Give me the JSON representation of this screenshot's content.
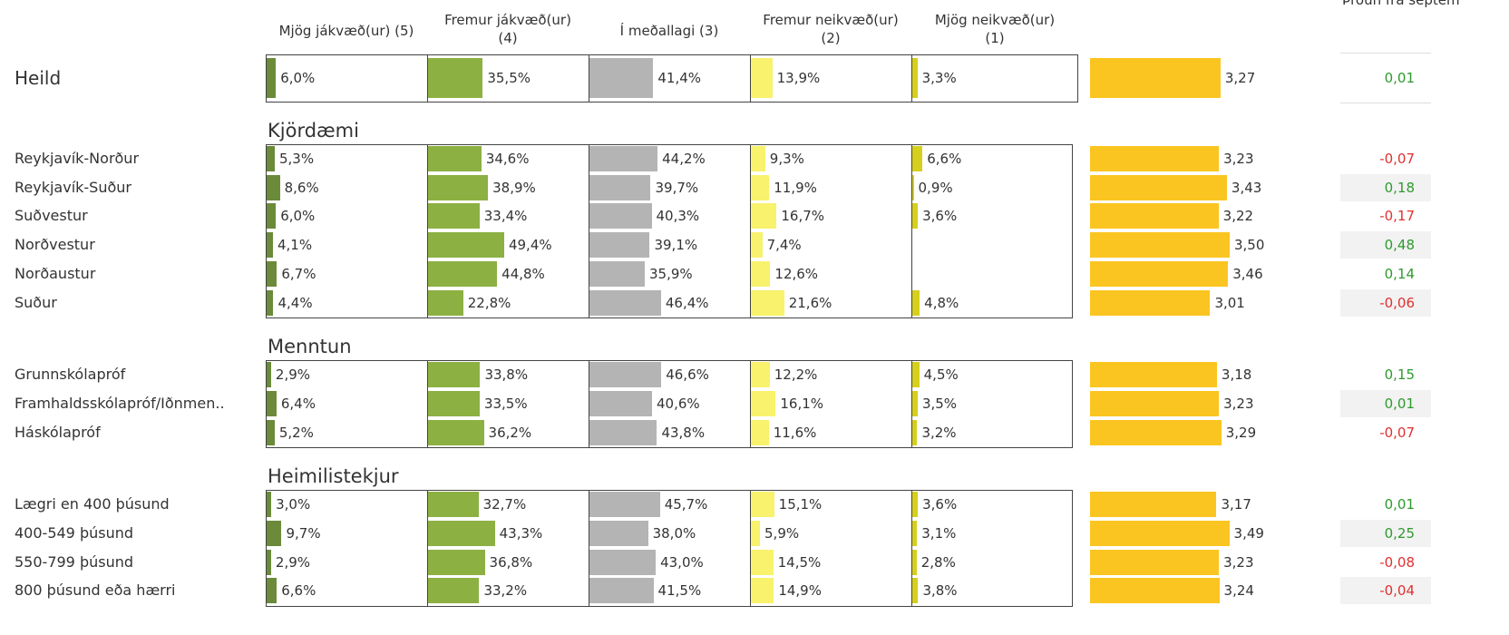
{
  "trend_header": "Þróun frá septem",
  "columns": [
    {
      "name": "Mjög jákvæð(ur) (5)",
      "color": "#6b8a3a"
    },
    {
      "name": "Fremur jákvæð(ur) (4)",
      "color": "#8db043"
    },
    {
      "name": "Í meðallagi (3)",
      "color": "#b4b4b4"
    },
    {
      "name": "Fremur neikvæð(ur) (2)",
      "color": "#f8f26c"
    },
    {
      "name": "Mjög neikvæð(ur) (1)",
      "color": "#d6cf1e"
    }
  ],
  "mean_color": "#fbc521",
  "positive_color": "#2e9a2e",
  "negative_color": "#e03030",
  "total": {
    "label": "Heild",
    "values": [
      6.0,
      35.5,
      41.4,
      13.9,
      3.3
    ],
    "value_labels": [
      "6,0%",
      "35,5%",
      "41,4%",
      "13,9%",
      "3,3%"
    ],
    "mean": 3.27,
    "mean_label": "3,27",
    "change": 0.01,
    "change_label": "0,01"
  },
  "groups": [
    {
      "title": "Kjördæmi",
      "rows": [
        {
          "label": "Reykjavík-Norður",
          "values": [
            5.3,
            34.6,
            44.2,
            9.3,
            6.6
          ],
          "value_labels": [
            "5,3%",
            "34,6%",
            "44,2%",
            "9,3%",
            "6,6%"
          ],
          "mean": 3.23,
          "mean_label": "3,23",
          "change": -0.07,
          "change_label": "-0,07"
        },
        {
          "label": "Reykjavík-Suður",
          "values": [
            8.6,
            38.9,
            39.7,
            11.9,
            0.9
          ],
          "value_labels": [
            "8,6%",
            "38,9%",
            "39,7%",
            "11,9%",
            "0,9%"
          ],
          "mean": 3.43,
          "mean_label": "3,43",
          "change": 0.18,
          "change_label": "0,18"
        },
        {
          "label": "Suðvestur",
          "values": [
            6.0,
            33.4,
            40.3,
            16.7,
            3.6
          ],
          "value_labels": [
            "6,0%",
            "33,4%",
            "40,3%",
            "16,7%",
            "3,6%"
          ],
          "mean": 3.22,
          "mean_label": "3,22",
          "change": -0.17,
          "change_label": "-0,17"
        },
        {
          "label": "Norðvestur",
          "values": [
            4.1,
            49.4,
            39.1,
            7.4,
            null
          ],
          "value_labels": [
            "4,1%",
            "49,4%",
            "39,1%",
            "7,4%",
            null
          ],
          "mean": 3.5,
          "mean_label": "3,50",
          "change": 0.48,
          "change_label": "0,48"
        },
        {
          "label": "Norðaustur",
          "values": [
            6.7,
            44.8,
            35.9,
            12.6,
            null
          ],
          "value_labels": [
            "6,7%",
            "44,8%",
            "35,9%",
            "12,6%",
            null
          ],
          "mean": 3.46,
          "mean_label": "3,46",
          "change": 0.14,
          "change_label": "0,14"
        },
        {
          "label": "Suður",
          "values": [
            4.4,
            22.8,
            46.4,
            21.6,
            4.8
          ],
          "value_labels": [
            "4,4%",
            "22,8%",
            "46,4%",
            "21,6%",
            "4,8%"
          ],
          "mean": 3.01,
          "mean_label": "3,01",
          "change": -0.06,
          "change_label": "-0,06"
        }
      ]
    },
    {
      "title": "Menntun",
      "rows": [
        {
          "label": "Grunnskólapróf",
          "values": [
            2.9,
            33.8,
            46.6,
            12.2,
            4.5
          ],
          "value_labels": [
            "2,9%",
            "33,8%",
            "46,6%",
            "12,2%",
            "4,5%"
          ],
          "mean": 3.18,
          "mean_label": "3,18",
          "change": 0.15,
          "change_label": "0,15"
        },
        {
          "label": "Framhaldsskólapróf/Iðnmen..",
          "values": [
            6.4,
            33.5,
            40.6,
            16.1,
            3.5
          ],
          "value_labels": [
            "6,4%",
            "33,5%",
            "40,6%",
            "16,1%",
            "3,5%"
          ],
          "mean": 3.23,
          "mean_label": "3,23",
          "change": 0.01,
          "change_label": "0,01"
        },
        {
          "label": "Háskólapróf",
          "values": [
            5.2,
            36.2,
            43.8,
            11.6,
            3.2
          ],
          "value_labels": [
            "5,2%",
            "36,2%",
            "43,8%",
            "11,6%",
            "3,2%"
          ],
          "mean": 3.29,
          "mean_label": "3,29",
          "change": -0.07,
          "change_label": "-0,07"
        }
      ]
    },
    {
      "title": "Heimilistekjur",
      "rows": [
        {
          "label": "Lægri en 400 þúsund",
          "values": [
            3.0,
            32.7,
            45.7,
            15.1,
            3.6
          ],
          "value_labels": [
            "3,0%",
            "32,7%",
            "45,7%",
            "15,1%",
            "3,6%"
          ],
          "mean": 3.17,
          "mean_label": "3,17",
          "change": 0.01,
          "change_label": "0,01"
        },
        {
          "label": "400-549 þúsund",
          "values": [
            9.7,
            43.3,
            38.0,
            5.9,
            3.1
          ],
          "value_labels": [
            "9,7%",
            "43,3%",
            "38,0%",
            "5,9%",
            "3,1%"
          ],
          "mean": 3.49,
          "mean_label": "3,49",
          "change": 0.25,
          "change_label": "0,25"
        },
        {
          "label": "550-799 þúsund",
          "values": [
            2.9,
            36.8,
            43.0,
            14.5,
            2.8
          ],
          "value_labels": [
            "2,9%",
            "36,8%",
            "43,0%",
            "14,5%",
            "2,8%"
          ],
          "mean": 3.23,
          "mean_label": "3,23",
          "change": -0.08,
          "change_label": "-0,08"
        },
        {
          "label": "800 þúsund eða hærri",
          "values": [
            6.6,
            33.2,
            41.5,
            14.9,
            3.8
          ],
          "value_labels": [
            "6,6%",
            "33,2%",
            "41,5%",
            "14,9%",
            "3,8%"
          ],
          "mean": 3.24,
          "mean_label": "3,24",
          "change": -0.04,
          "change_label": "-0,04"
        }
      ]
    }
  ]
}
